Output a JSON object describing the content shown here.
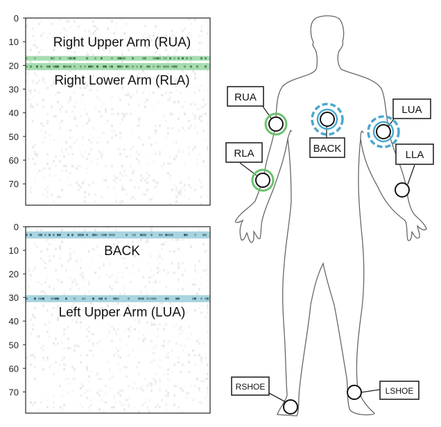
{
  "panels": [
    {
      "y_ticks": [
        "0",
        "10",
        "20",
        "30",
        "40",
        "50",
        "60",
        "70"
      ],
      "y_range": [
        0,
        79
      ],
      "highlight_color": "#a8dcb0",
      "highlights": [
        {
          "rows": [
            16,
            18
          ]
        },
        {
          "rows": [
            19,
            22
          ]
        }
      ],
      "labels": [
        {
          "text": "Right Upper Arm (RUA)",
          "row": 10
        },
        {
          "text": "Right Lower Arm (RLA)",
          "row": 26
        }
      ]
    },
    {
      "y_ticks": [
        "0",
        "10",
        "20",
        "30",
        "40",
        "50",
        "60",
        "70"
      ],
      "y_range": [
        0,
        79
      ],
      "highlight_color": "#a9d4e0",
      "highlights": [
        {
          "rows": [
            2,
            5
          ]
        },
        {
          "rows": [
            29,
            32
          ]
        }
      ],
      "labels": [
        {
          "text": "BACK",
          "row": 10
        },
        {
          "text": "Left Upper Arm (LUA)",
          "row": 36
        }
      ]
    }
  ],
  "body": {
    "sensors": [
      {
        "label": "RUA",
        "ring": "green"
      },
      {
        "label": "RLA",
        "ring": "green"
      },
      {
        "label": "BACK",
        "ring": "blue-dashed"
      },
      {
        "label": "LUA",
        "ring": "blue-dashed"
      },
      {
        "label": "LLA",
        "ring": "none"
      },
      {
        "label": "RSHOE",
        "ring": "none"
      },
      {
        "label": "LSHOE",
        "ring": "none"
      }
    ],
    "colors": {
      "green": "#6cc36e",
      "blue": "#4aa8cc",
      "outline": "#666666"
    }
  }
}
